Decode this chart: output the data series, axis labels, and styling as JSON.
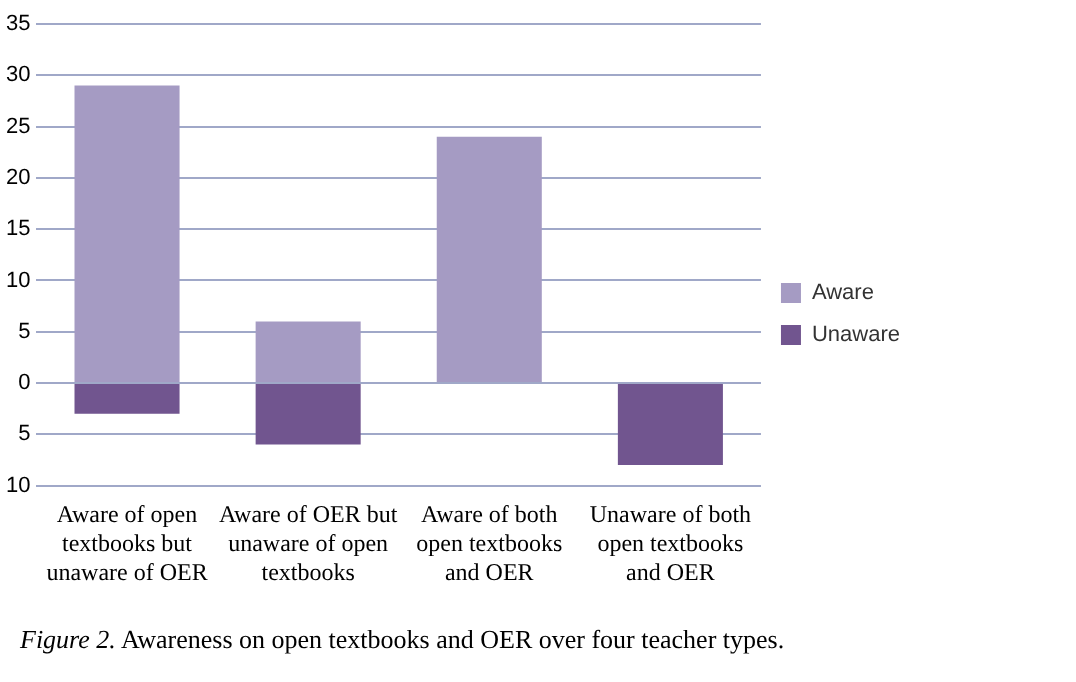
{
  "chart_data": {
    "type": "bar",
    "stacked": true,
    "categories": [
      "Aware of open textbooks but unaware of OER",
      "Aware of OER but unaware of open textbooks",
      "Aware of both open textbooks and OER",
      "Unaware of both open textbooks and OER"
    ],
    "series": [
      {
        "name": "Aware",
        "color": "#a59bc3",
        "values": [
          29,
          6,
          24,
          0
        ]
      },
      {
        "name": "Unaware",
        "color": "#71558f",
        "values": [
          -3,
          -6,
          0,
          -8
        ]
      }
    ],
    "ylim": [
      -10,
      35
    ],
    "yticks": [
      {
        "value": -10,
        "label": "10"
      },
      {
        "value": -5,
        "label": "5"
      },
      0,
      5,
      10,
      15,
      20,
      25,
      30,
      35
    ],
    "grid": "y",
    "legend": "right",
    "annotations": [
      "Figure 2. Awareness on open textbooks and OER over four teacher types."
    ]
  }
}
